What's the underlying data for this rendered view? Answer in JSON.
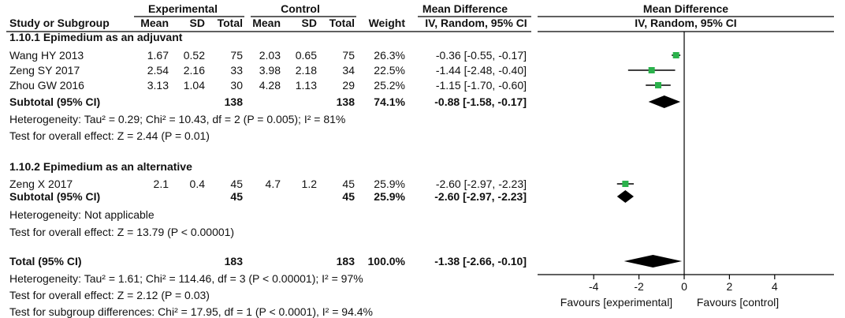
{
  "chart_data": {
    "type": "forest",
    "headers": {
      "study": "Study or Subgroup",
      "experimental": "Experimental",
      "control": "Control",
      "mean": "Mean",
      "sd": "SD",
      "total": "Total",
      "weight": "Weight",
      "md_title": "Mean Difference",
      "md_method": "IV, Random, 95% CI",
      "plot_title": "Mean Difference",
      "plot_method": "IV, Random, 95% CI"
    },
    "groups": [
      {
        "title": "1.10.1 Epimedium as an adjuvant",
        "studies": [
          {
            "name": "Wang HY 2013",
            "e_mean": "1.67",
            "e_sd": "0.52",
            "e_total": "75",
            "c_mean": "2.03",
            "c_sd": "0.65",
            "c_total": "75",
            "weight": "26.3%",
            "ci_text": "-0.36 [-0.55, -0.17]",
            "md": -0.36,
            "lo": -0.55,
            "hi": -0.17
          },
          {
            "name": "Zeng SY 2017",
            "e_mean": "2.54",
            "e_sd": "2.16",
            "e_total": "33",
            "c_mean": "3.98",
            "c_sd": "2.18",
            "c_total": "34",
            "weight": "22.5%",
            "ci_text": "-1.44 [-2.48, -0.40]",
            "md": -1.44,
            "lo": -2.48,
            "hi": -0.4
          },
          {
            "name": "Zhou GW 2016",
            "e_mean": "3.13",
            "e_sd": "1.04",
            "e_total": "30",
            "c_mean": "4.28",
            "c_sd": "1.13",
            "c_total": "29",
            "weight": "25.2%",
            "ci_text": "-1.15 [-1.70, -0.60]",
            "md": -1.15,
            "lo": -1.7,
            "hi": -0.6
          }
        ],
        "subtotal": {
          "label": "Subtotal (95% CI)",
          "e_total": "138",
          "c_total": "138",
          "weight": "74.1%",
          "ci_text": "-0.88 [-1.58, -0.17]",
          "md": -0.88,
          "lo": -1.58,
          "hi": -0.17
        },
        "heterogeneity": "Heterogeneity: Tau² = 0.29; Chi² = 10.43, df = 2 (P = 0.005); I² = 81%",
        "overall": "Test for overall effect: Z = 2.44 (P = 0.01)"
      },
      {
        "title": "1.10.2 Epimedium as an alternative",
        "studies": [
          {
            "name": "Zeng X 2017",
            "e_mean": "2.1",
            "e_sd": "0.4",
            "e_total": "45",
            "c_mean": "4.7",
            "c_sd": "1.2",
            "c_total": "45",
            "weight": "25.9%",
            "ci_text": "-2.60 [-2.97, -2.23]",
            "md": -2.6,
            "lo": -2.97,
            "hi": -2.23
          }
        ],
        "subtotal": {
          "label": "Subtotal (95% CI)",
          "e_total": "45",
          "c_total": "45",
          "weight": "25.9%",
          "ci_text": "-2.60 [-2.97, -2.23]",
          "md": -2.6,
          "lo": -2.97,
          "hi": -2.23
        },
        "heterogeneity": "Heterogeneity: Not applicable",
        "overall": "Test for overall effect: Z = 13.79 (P < 0.00001)"
      }
    ],
    "total": {
      "label": "Total (95% CI)",
      "e_total": "183",
      "c_total": "183",
      "weight": "100.0%",
      "ci_text": "-1.38 [-2.66, -0.10]",
      "md": -1.38,
      "lo": -2.66,
      "hi": -0.1
    },
    "footer": [
      "Heterogeneity: Tau² = 1.61; Chi² = 114.46, df = 3 (P < 0.00001); I² = 97%",
      "Test for overall effect: Z = 2.12 (P = 0.03)",
      "Test for subgroup differences: Chi² = 17.95, df = 1 (P < 0.0001), I² = 94.4%"
    ],
    "axis": {
      "xlim": [
        -5,
        5
      ],
      "ticks": [
        -4,
        -2,
        0,
        2,
        4
      ],
      "tick_labels": [
        "-4",
        "-2",
        "0",
        "2",
        "4"
      ],
      "left_label": "Favours [experimental]",
      "right_label": "Favours [control]"
    },
    "colors": {
      "study_marker": "#2bb24c",
      "diamond": "#000000"
    }
  }
}
